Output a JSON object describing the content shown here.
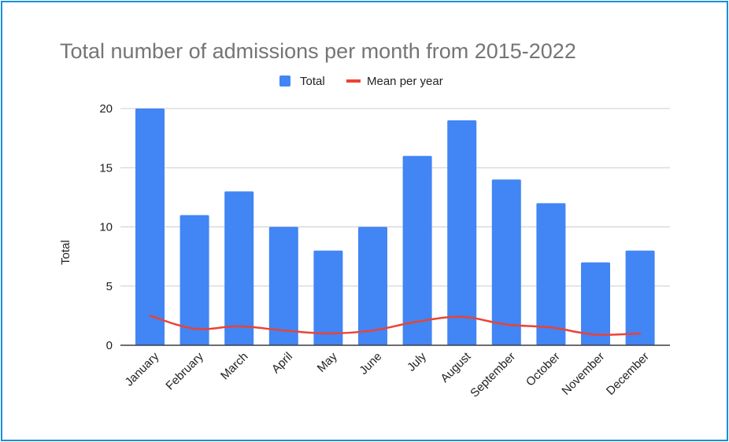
{
  "chart_data": {
    "type": "bar",
    "title": "Total number of admissions per month from 2015-2022",
    "xlabel": "",
    "ylabel": "Total",
    "ylim": [
      0,
      20
    ],
    "yticks": [
      "0",
      "5",
      "10",
      "15",
      "20"
    ],
    "grid": true,
    "legend_position": "top",
    "categories": [
      "January",
      "February",
      "March",
      "April",
      "May",
      "June",
      "July",
      "August",
      "September",
      "October",
      "November",
      "December"
    ],
    "series": [
      {
        "name": "Total",
        "type": "bar",
        "color": "#4285f4",
        "values": [
          20,
          11,
          13,
          10,
          8,
          10,
          16,
          19,
          14,
          12,
          7,
          8
        ]
      },
      {
        "name": "Mean per year",
        "type": "line",
        "color": "#ea4335",
        "values": [
          2.5,
          1.4,
          1.6,
          1.25,
          1.0,
          1.25,
          2.0,
          2.4,
          1.75,
          1.5,
          0.9,
          1.0
        ]
      }
    ]
  }
}
